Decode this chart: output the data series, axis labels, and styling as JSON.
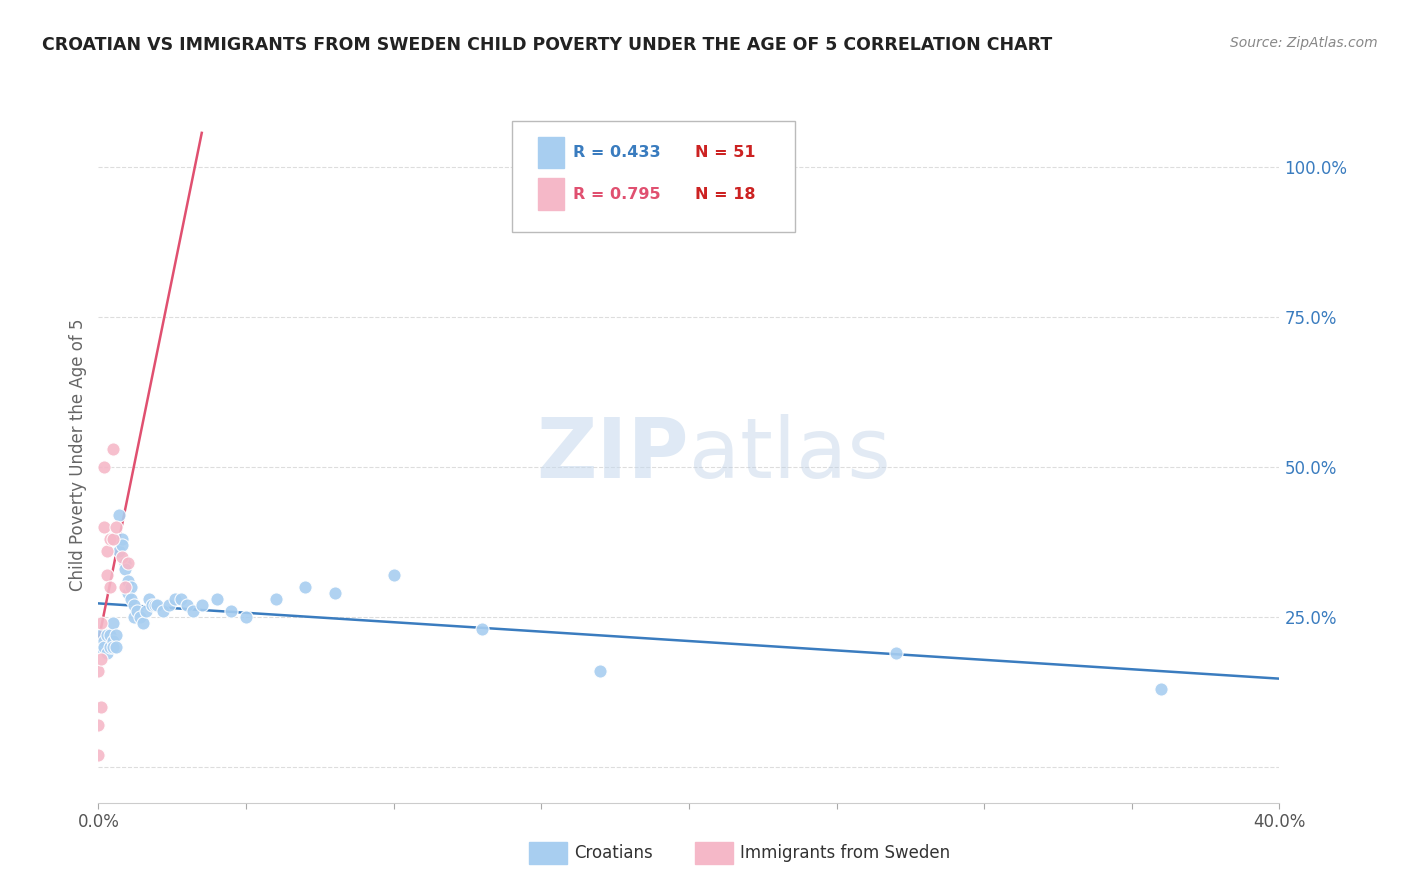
{
  "title": "CROATIAN VS IMMIGRANTS FROM SWEDEN CHILD POVERTY UNDER THE AGE OF 5 CORRELATION CHART",
  "source": "Source: ZipAtlas.com",
  "ylabel": "Child Poverty Under the Age of 5",
  "xlim": [
    0.0,
    0.4
  ],
  "ylim": [
    -0.06,
    1.1
  ],
  "ytick_positions": [
    0.0,
    0.25,
    0.5,
    0.75,
    1.0
  ],
  "yticklabels": [
    "",
    "25.0%",
    "50.0%",
    "75.0%",
    "100.0%"
  ],
  "croatians_R": 0.433,
  "croatians_N": 51,
  "immigrants_R": 0.795,
  "immigrants_N": 18,
  "croatians_color": "#a8cef0",
  "immigrants_color": "#f5b8c8",
  "trendline_croatians_color": "#3a7cbf",
  "trendline_immigrants_color": "#e05070",
  "watermark_zip": "ZIP",
  "watermark_atlas": "atlas",
  "background_color": "#ffffff",
  "grid_color": "#dddddd",
  "croatians_x": [
    0.001,
    0.001,
    0.002,
    0.002,
    0.003,
    0.003,
    0.004,
    0.004,
    0.005,
    0.005,
    0.005,
    0.006,
    0.006,
    0.007,
    0.007,
    0.008,
    0.008,
    0.009,
    0.009,
    0.01,
    0.01,
    0.011,
    0.011,
    0.012,
    0.012,
    0.013,
    0.014,
    0.015,
    0.016,
    0.017,
    0.018,
    0.019,
    0.02,
    0.022,
    0.024,
    0.026,
    0.028,
    0.03,
    0.032,
    0.035,
    0.04,
    0.045,
    0.05,
    0.06,
    0.07,
    0.08,
    0.1,
    0.13,
    0.17,
    0.27,
    0.36
  ],
  "croatians_y": [
    0.22,
    0.2,
    0.21,
    0.2,
    0.22,
    0.19,
    0.2,
    0.22,
    0.21,
    0.24,
    0.2,
    0.22,
    0.2,
    0.36,
    0.42,
    0.38,
    0.37,
    0.34,
    0.33,
    0.31,
    0.29,
    0.3,
    0.28,
    0.27,
    0.25,
    0.26,
    0.25,
    0.24,
    0.26,
    0.28,
    0.27,
    0.27,
    0.27,
    0.26,
    0.27,
    0.28,
    0.28,
    0.27,
    0.26,
    0.27,
    0.28,
    0.26,
    0.25,
    0.28,
    0.3,
    0.29,
    0.32,
    0.23,
    0.16,
    0.19,
    0.13
  ],
  "immigrants_x": [
    0.0,
    0.0,
    0.0,
    0.001,
    0.001,
    0.001,
    0.002,
    0.002,
    0.003,
    0.003,
    0.004,
    0.004,
    0.005,
    0.005,
    0.006,
    0.008,
    0.009,
    0.01
  ],
  "immigrants_y": [
    0.02,
    0.07,
    0.16,
    0.1,
    0.18,
    0.24,
    0.5,
    0.4,
    0.32,
    0.36,
    0.3,
    0.38,
    0.53,
    0.38,
    0.4,
    0.35,
    0.3,
    0.34
  ]
}
